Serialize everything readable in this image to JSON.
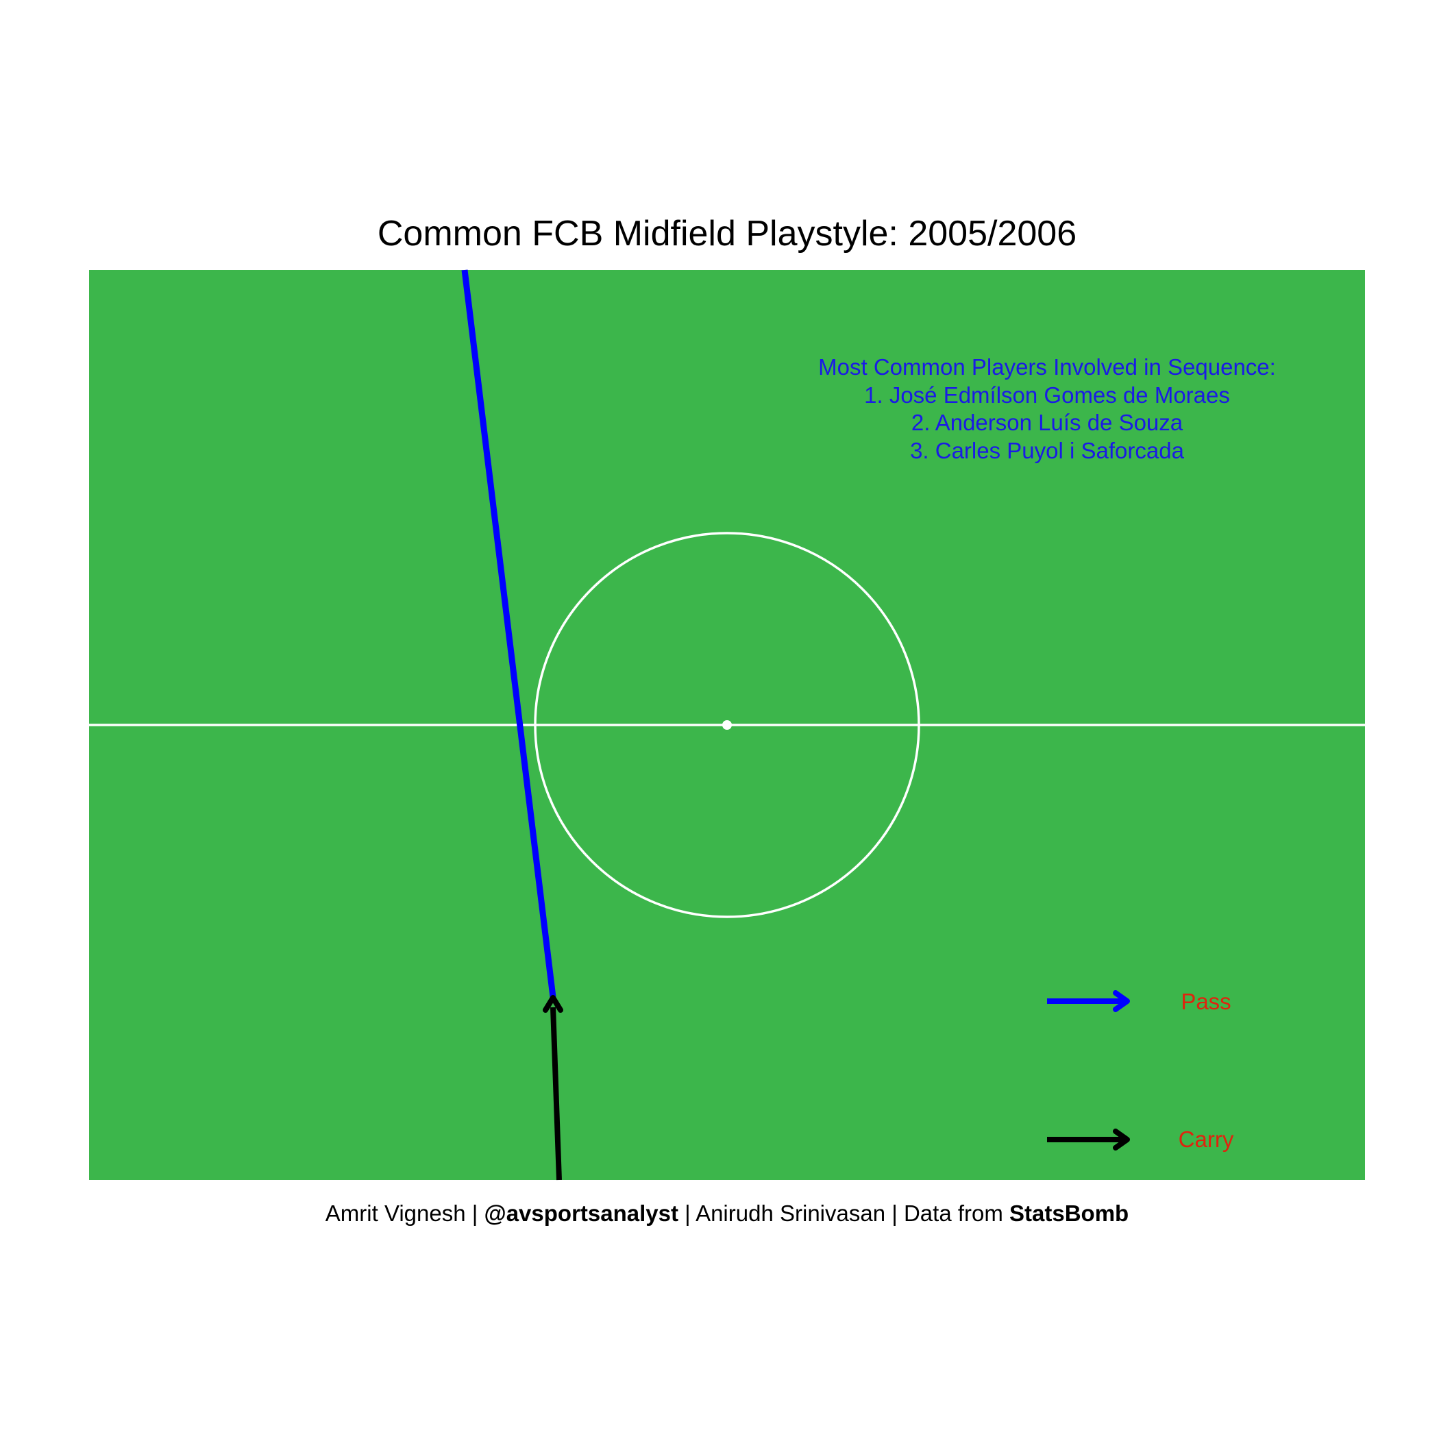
{
  "title": "Common FCB Midfield Playstyle:  2005/2006",
  "colors": {
    "pitch": "#3cb64b",
    "lines": "#ffffff",
    "pass": "#0000ff",
    "carry": "#000000",
    "players_text": "#1a1ae6",
    "legend_text": "#e0230e"
  },
  "players_box": {
    "heading": "Most Common Players Involved in Sequence:",
    "items": [
      "1.  José Edmílson Gomes de Moraes",
      "2.  Anderson Luís de Souza",
      "3.  Carles Puyol i Saforcada"
    ]
  },
  "legend": {
    "pass_label": "Pass",
    "carry_label": "Carry"
  },
  "caption": {
    "author": "Amrit Vignesh | ",
    "handle": "@avsportsanalyst",
    "middle": " | Anirudh Srinivasan | Data from ",
    "source": "StatsBomb"
  },
  "pitch": {
    "half_line": true,
    "center_circle": true,
    "center_spot": true
  }
}
